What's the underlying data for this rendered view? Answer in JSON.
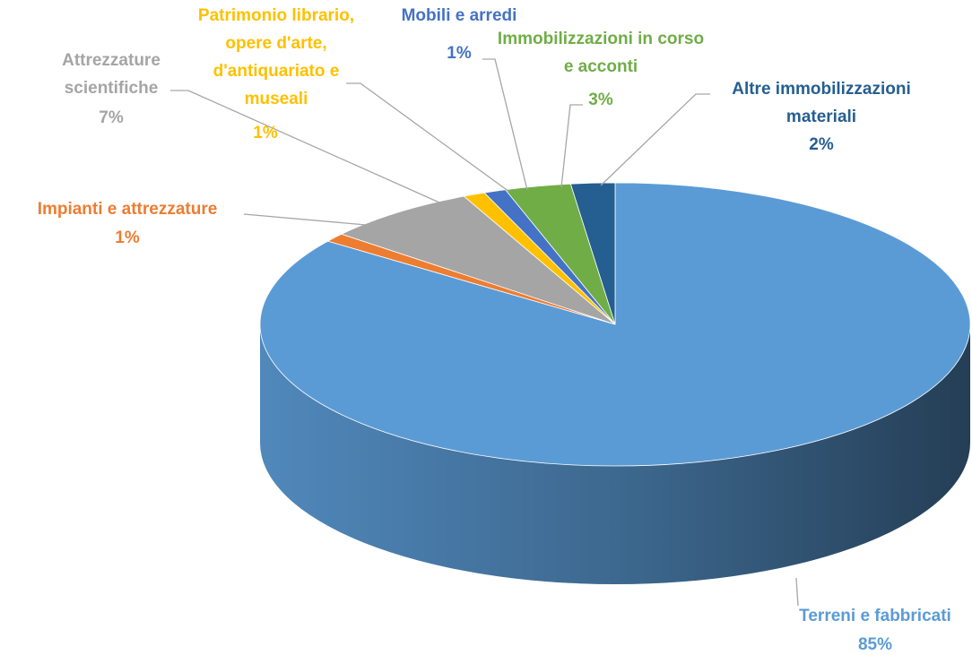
{
  "chart_data": {
    "type": "pie",
    "categories": [
      "Terreni e fabbricati",
      "Impianti e attrezzature",
      "Attrezzature scientifiche",
      "Patrimonio librario, opere d'arte, d'antiquariato e museali",
      "Mobili e arredi",
      "Immobilizzazioni in corso e acconti",
      "Altre immobilizzazioni materiali"
    ],
    "values": [
      85,
      1,
      7,
      1,
      1,
      3,
      2
    ],
    "value_labels": [
      "85%",
      "1%",
      "7%",
      "1%",
      "1%",
      "3%",
      "2%"
    ],
    "colors": [
      "#5b9bd5",
      "#ed7d31",
      "#a5a5a5",
      "#ffc000",
      "#4472c4",
      "#70ad47",
      "#255e91"
    ]
  }
}
